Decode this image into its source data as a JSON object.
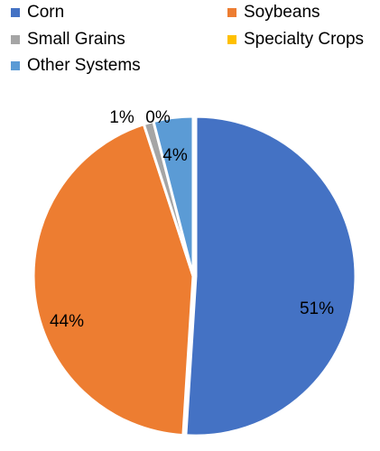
{
  "chart_data": {
    "type": "pie",
    "slices": [
      {
        "name": "Corn",
        "value": 51,
        "label": "51%",
        "color": "#4472C4"
      },
      {
        "name": "Soybeans",
        "value": 44,
        "label": "44%",
        "color": "#ED7D31"
      },
      {
        "name": "Small Grains",
        "value": 1,
        "label": "1%",
        "color": "#A5A5A5"
      },
      {
        "name": "Specialty Crops",
        "value": 0,
        "label": "0%",
        "color": "#FFC000"
      },
      {
        "name": "Other Systems",
        "value": 4,
        "label": "4%",
        "color": "#5B9BD5"
      }
    ],
    "legend_position": "top"
  }
}
